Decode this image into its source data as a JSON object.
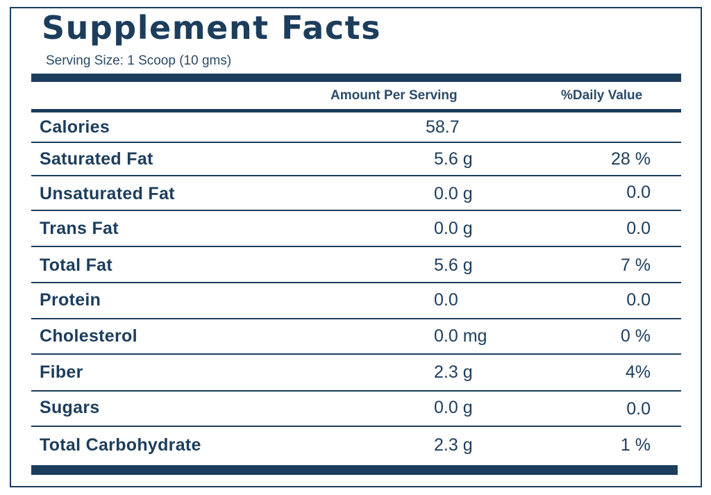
{
  "label": {
    "title": "Supplement Facts",
    "serving_size": "Serving Size: 1 Scoop (10 gms)",
    "header_amount": "Amount Per Serving",
    "header_daily_value": "%Daily Value"
  },
  "rows": [
    {
      "name": "Calories",
      "amount": "58.7",
      "daily_value": ""
    },
    {
      "name": "Saturated Fat",
      "amount": "5.6 g",
      "daily_value": "28 %"
    },
    {
      "name": "Unsaturated Fat",
      "amount": "0.0 g",
      "daily_value": "0.0"
    },
    {
      "name": "Trans Fat",
      "amount": "0.0 g",
      "daily_value": "0.0"
    },
    {
      "name": "Total Fat",
      "amount": "5.6 g",
      "daily_value": "7 %"
    },
    {
      "name": "Protein",
      "amount": "0.0",
      "daily_value": "0.0"
    },
    {
      "name": "Cholesterol",
      "amount": "0.0 mg",
      "daily_value": "0 %"
    },
    {
      "name": "Fiber",
      "amount": "2.3 g",
      "daily_value": "4%"
    },
    {
      "name": "Sugars",
      "amount": "0.0 g",
      "daily_value": "0.0"
    },
    {
      "name": "Total Carbohydrate",
      "amount": "2.3 g",
      "daily_value": "1 %"
    }
  ],
  "colors": {
    "primary": "#1c3d5c"
  }
}
